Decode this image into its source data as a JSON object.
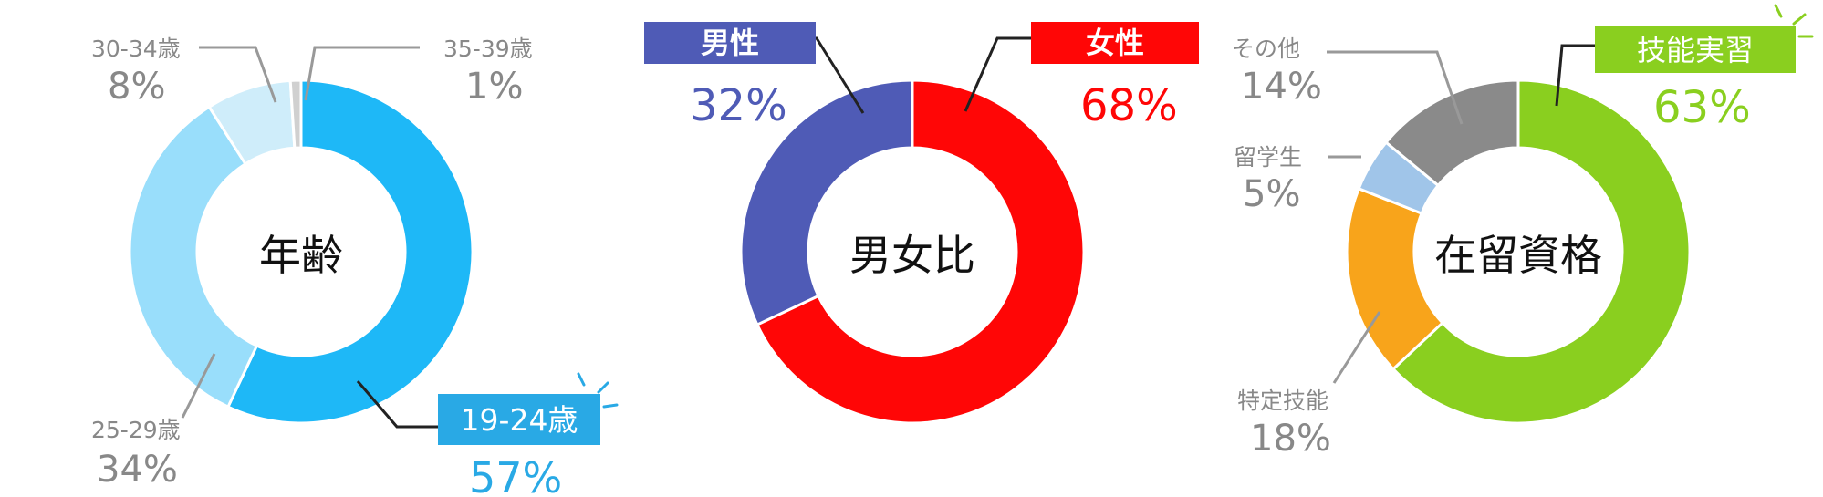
{
  "chart_data": [
    {
      "type": "pie",
      "title": "年齢",
      "slices": [
        {
          "label": "19-24歳",
          "value": 57,
          "value_text": "57%",
          "color": "#1EB8F7"
        },
        {
          "label": "25-29歳",
          "value": 34,
          "value_text": "34%",
          "color": "#99DEFB"
        },
        {
          "label": "30-34歳",
          "value": 8,
          "value_text": "8%",
          "color": "#CFEDFA"
        },
        {
          "label": "35-39歳",
          "value": 1,
          "value_text": "1%",
          "color": "#D0D0D0"
        }
      ],
      "highlight": "19-24歳",
      "highlight_color": "#29A9E5"
    },
    {
      "type": "pie",
      "title": "男女比",
      "slices": [
        {
          "label": "女性",
          "value": 68,
          "value_text": "68%",
          "color": "#FF0606"
        },
        {
          "label": "男性",
          "value": 32,
          "value_text": "32%",
          "color": "#4F5BB6"
        }
      ]
    },
    {
      "type": "pie",
      "title": "在留資格",
      "slices": [
        {
          "label": "技能実習",
          "value": 63,
          "value_text": "63%",
          "color": "#8ACF1F"
        },
        {
          "label": "特定技能",
          "value": 18,
          "value_text": "18%",
          "color": "#F8A41B"
        },
        {
          "label": "留学生",
          "value": 5,
          "value_text": "5%",
          "color": "#A0C5E9"
        },
        {
          "label": "その他",
          "value": 14,
          "value_text": "14%",
          "color": "#8A8A8A"
        }
      ],
      "highlight": "技能実習",
      "highlight_color": "#8ACF1F"
    }
  ],
  "colors": {
    "label_gray": "#888888",
    "leader_dark": "#222222",
    "leader_gray": "#999999",
    "title": "#111111"
  },
  "icons": {
    "burst": "burst-rays-icon"
  }
}
